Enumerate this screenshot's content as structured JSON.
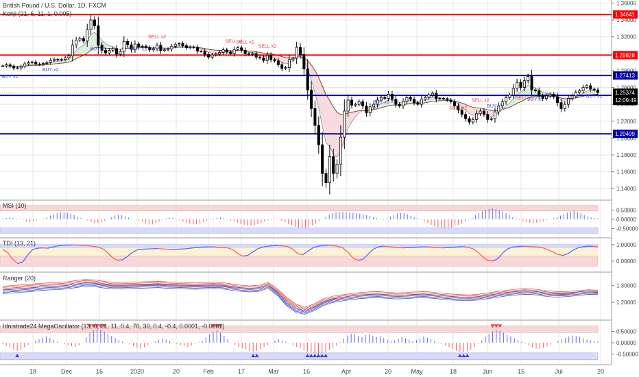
{
  "colors": {
    "up_candle": "#ffffff",
    "down_candle": "#000000",
    "red_level": "#ff0000",
    "blue_level": "#0000aa",
    "pane_border": "#999999",
    "grid": "#e6e6e6",
    "osc_red_band": "#f8d7d7",
    "osc_blue_band": "#d7dbf8",
    "kx_red": "#ff5a5a",
    "kx_blue": "#5a64ff",
    "kx_green": "#32a04a",
    "ranger_red": "#e0554a",
    "ranger_blue": "#3f57c8",
    "current_price_box": "#000000"
  },
  "chart_data": [
    {
      "type": "candlestick",
      "title": "British Pound / U.S. Dollar, 1D, FXCM",
      "indicator_label": "Konji (21, 6, 11, 1, 0.005)",
      "x_tick_labels": [
        "18",
        "Dec",
        "16",
        "2020",
        "20",
        "Feb",
        "17",
        "Mar",
        "16",
        "Apr",
        "20",
        "May",
        "18",
        "Jun",
        "15",
        "Jul",
        "20"
      ],
      "y_tick_labels": [
        "1.36000",
        "1.34000",
        "1.32000",
        "1.30000",
        "1.28000",
        "1.26000",
        "1.24000",
        "1.22000",
        "1.20000",
        "1.18000",
        "1.16000",
        "1.14000"
      ],
      "ylim": [
        1.128,
        1.362
      ],
      "horizontal_levels": [
        {
          "value": 1.34641,
          "label": "1.34641",
          "color": "red"
        },
        {
          "value": 1.29828,
          "label": "1.29828",
          "color": "red"
        },
        {
          "value": 1.27413,
          "label": "1.27413",
          "color": "blue"
        },
        {
          "value": 1.25054,
          "label": "1.25054",
          "color": "blue"
        },
        {
          "value": 1.20499,
          "label": "1.20499",
          "color": "blue"
        }
      ],
      "current_price": "1.25374",
      "countdown": "12:09:49",
      "annotations": [
        {
          "text": "SELL x2",
          "idx": 42,
          "price": 1.318
        },
        {
          "text": "SELL x1",
          "idx": 63,
          "price": 1.313
        },
        {
          "text": "SELL x1",
          "idx": 66,
          "price": 1.312
        },
        {
          "text": "SELL x2",
          "idx": 72,
          "price": 1.307
        },
        {
          "text": "SELL x2",
          "idx": 124,
          "price": 1.234
        },
        {
          "text": "SELL x2",
          "idx": 130,
          "price": 1.243
        },
        {
          "text": "SELL x1",
          "idx": 142,
          "price": 1.246
        },
        {
          "text": "BUY x1",
          "idx": 2,
          "price": 1.271
        },
        {
          "text": "BUY x2",
          "idx": 13,
          "price": 1.279
        },
        {
          "text": "BUY x1",
          "idx": 26,
          "price": 1.304
        },
        {
          "text": "BUY x2",
          "idx": 37,
          "price": 1.304
        },
        {
          "text": "BUY x1",
          "idx": 103,
          "price": 1.241
        },
        {
          "text": "BUY x1",
          "idx": 134,
          "price": 1.236
        },
        {
          "text": "BUY x1",
          "idx": 145,
          "price": 1.244
        },
        {
          "text": "BUY x1",
          "idx": 161,
          "price": 1.248
        }
      ],
      "close": [
        1.2855,
        1.2868,
        1.285,
        1.283,
        1.2832,
        1.285,
        1.288,
        1.2895,
        1.29,
        1.2878,
        1.2872,
        1.2885,
        1.2895,
        1.292,
        1.2935,
        1.2925,
        1.2932,
        1.295,
        1.2975,
        1.3102,
        1.316,
        1.318,
        1.315,
        1.3285,
        1.34,
        1.333,
        1.31,
        1.304,
        1.301,
        1.304,
        1.306,
        1.2995,
        1.3025,
        1.3145,
        1.3105,
        1.305,
        1.3115,
        1.3085,
        1.309,
        1.3072,
        1.3045,
        1.306,
        1.31,
        1.3038,
        1.3045,
        1.3055,
        1.3088,
        1.311,
        1.312,
        1.3095,
        1.307,
        1.308,
        1.3075,
        1.303,
        1.3028,
        1.299,
        1.296,
        1.2985,
        1.2995,
        1.3015,
        1.3045,
        1.302,
        1.3,
        1.305,
        1.307,
        1.304,
        1.3,
        1.299,
        1.3,
        1.296,
        1.295,
        1.292,
        1.298,
        1.293,
        1.2915,
        1.287,
        1.2825,
        1.2835,
        1.293,
        1.2945,
        1.3075,
        1.299,
        1.282,
        1.257,
        1.235,
        1.215,
        1.192,
        1.158,
        1.147,
        1.178,
        1.158,
        1.169,
        1.201,
        1.232,
        1.245,
        1.239,
        1.24,
        1.243,
        1.238,
        1.23,
        1.237,
        1.24,
        1.245,
        1.248,
        1.247,
        1.252,
        1.246,
        1.24,
        1.238,
        1.2435,
        1.248,
        1.246,
        1.242,
        1.24,
        1.246,
        1.248,
        1.251,
        1.253,
        1.2465,
        1.247,
        1.2465,
        1.245,
        1.243,
        1.238,
        1.233,
        1.228,
        1.223,
        1.219,
        1.222,
        1.229,
        1.232,
        1.228,
        1.222,
        1.223,
        1.231,
        1.238,
        1.243,
        1.248,
        1.251,
        1.259,
        1.266,
        1.26,
        1.268,
        1.273,
        1.257,
        1.256,
        1.25,
        1.247,
        1.25,
        1.252,
        1.249,
        1.242,
        1.235,
        1.24,
        1.247,
        1.25,
        1.254,
        1.256,
        1.26,
        1.262,
        1.258,
        1.257,
        1.2537
      ]
    },
    {
      "type": "bar",
      "title": "MSI (10)",
      "y_tick_labels": [
        "0.50000",
        "0.00000",
        "-0.50000"
      ],
      "ylim": [
        -0.85,
        0.85
      ],
      "values": [
        0.05,
        0.08,
        0.1,
        0.07,
        0.04,
        0.02,
        -0.03,
        -0.12,
        -0.16,
        -0.1,
        -0.05,
        0.02,
        0.04,
        0.12,
        0.2,
        0.28,
        0.34,
        0.39,
        0.4,
        0.36,
        0.31,
        0.23,
        0.15,
        0.07,
        0.0,
        -0.07,
        -0.14,
        -0.19,
        -0.2,
        -0.15,
        -0.08,
        0.02,
        0.11,
        0.2,
        0.25,
        0.22,
        0.16,
        0.09,
        0.03,
        0.0,
        -0.06,
        -0.14,
        -0.22,
        -0.28,
        -0.27,
        -0.2,
        -0.12,
        -0.04,
        0.05,
        0.1,
        0.07,
        0.01,
        -0.06,
        -0.13,
        -0.19,
        -0.24,
        -0.27,
        -0.26,
        -0.22,
        -0.16,
        -0.09,
        -0.03,
        0.03,
        0.08,
        0.1,
        0.06,
        0.01,
        -0.06,
        -0.12,
        -0.19,
        -0.25,
        -0.3,
        -0.33,
        -0.34,
        -0.32,
        -0.26,
        -0.19,
        -0.12,
        -0.06,
        -0.02,
        0.03,
        0.0,
        -0.08,
        -0.16,
        -0.25,
        -0.33,
        -0.4,
        -0.45,
        -0.48,
        -0.47,
        -0.42,
        -0.33,
        -0.22,
        -0.1,
        0.02,
        0.14,
        0.25,
        0.33,
        0.39,
        0.41,
        0.4,
        0.38,
        0.36,
        0.35,
        0.33,
        0.32,
        0.28,
        0.23,
        0.18,
        0.12,
        0.06,
        0.02,
        -0.02,
        0.05,
        0.14,
        0.24,
        0.32,
        0.35,
        0.33,
        0.27,
        0.2,
        0.12,
        0.05,
        -0.02,
        -0.1,
        -0.2,
        -0.3,
        -0.38,
        -0.44,
        -0.48,
        -0.5,
        -0.48,
        -0.44,
        -0.38,
        -0.3,
        -0.21,
        -0.11,
        -0.01,
        0.1,
        0.22,
        0.33,
        0.43,
        0.51,
        0.56,
        0.58,
        0.55,
        0.49,
        0.42,
        0.33,
        0.24,
        0.14,
        0.05,
        -0.04,
        -0.11,
        -0.16,
        -0.19,
        -0.2,
        -0.18,
        -0.14,
        -0.09,
        -0.04,
        0.01,
        0.06,
        0.12,
        0.2,
        0.28,
        0.36,
        0.42,
        0.45,
        0.41,
        0.33,
        0.24,
        0.16,
        0.1,
        0.07,
        0.05
      ]
    },
    {
      "type": "line",
      "title": "TDI (13, 21)",
      "y_tick_labels": [
        "1.00000",
        "0.00000"
      ],
      "ylim": [
        -0.5,
        1.2
      ],
      "series": [
        {
          "values": [
            0.7,
            0.52,
            0.1,
            -0.15,
            -0.05,
            0.38,
            0.7,
            0.78,
            0.8,
            0.78,
            0.85,
            0.92,
            0.95,
            0.97,
            0.98,
            0.97,
            0.95,
            0.94,
            0.9,
            0.85,
            0.75,
            0.5,
            0.2,
            0.05,
            0.08,
            0.3,
            0.55,
            0.7,
            0.72,
            0.74,
            0.75,
            0.76,
            0.74,
            0.72,
            0.7,
            0.72,
            0.74,
            0.76,
            0.8,
            0.83,
            0.85,
            0.86,
            0.86,
            0.84,
            0.82,
            0.8,
            0.7,
            0.45,
            0.3,
            0.35,
            0.55,
            0.75,
            0.85,
            0.9,
            0.93,
            0.94,
            0.92,
            0.88,
            0.72,
            0.45,
            0.38,
            0.6,
            0.8,
            0.9,
            0.94,
            0.95,
            0.94,
            0.9,
            0.8,
            0.55,
            0.2,
            0.05,
            0.1,
            0.4,
            0.7,
            0.85,
            0.9,
            0.88,
            0.85,
            0.82,
            0.8,
            0.82,
            0.84,
            0.85,
            0.86,
            0.86,
            0.84,
            0.82,
            0.8,
            0.82,
            0.84,
            0.86,
            0.88,
            0.84,
            0.75,
            0.55,
            0.25,
            0.05,
            0.0,
            0.15,
            0.5,
            0.75,
            0.85,
            0.88,
            0.9,
            0.89,
            0.87,
            0.85,
            0.8,
            0.7,
            0.55,
            0.4,
            0.35,
            0.45,
            0.65,
            0.8,
            0.87,
            0.9,
            0.9,
            0.88
          ]
        }
      ]
    },
    {
      "type": "line",
      "title": "Ranger (20)",
      "y_tick_labels": [
        "1.30000",
        "1.20000"
      ],
      "ylim": [
        1.11,
        1.36
      ],
      "series": [
        {
          "values": [
            1.296,
            1.3,
            1.304,
            1.308,
            1.313,
            1.316,
            1.318,
            1.322,
            1.33,
            1.337,
            1.334,
            1.326,
            1.318,
            1.318,
            1.32,
            1.322,
            1.324,
            1.326,
            1.322,
            1.32,
            1.318,
            1.316,
            1.318,
            1.32,
            1.318,
            1.31,
            1.302,
            1.298,
            1.302,
            1.32,
            1.28,
            1.23,
            1.19,
            1.17,
            1.19,
            1.22,
            1.236,
            1.244,
            1.252,
            1.258,
            1.262,
            1.264,
            1.26,
            1.256,
            1.258,
            1.262,
            1.264,
            1.26,
            1.254,
            1.25,
            1.246,
            1.244,
            1.248,
            1.256,
            1.264,
            1.272,
            1.278,
            1.282,
            1.28,
            1.272,
            1.266,
            1.264,
            1.266,
            1.27,
            1.275,
            1.272
          ]
        },
        {
          "values": [
            1.252,
            1.256,
            1.26,
            1.264,
            1.27,
            1.274,
            1.276,
            1.28,
            1.288,
            1.296,
            1.294,
            1.286,
            1.28,
            1.28,
            1.282,
            1.284,
            1.286,
            1.288,
            1.284,
            1.282,
            1.28,
            1.278,
            1.28,
            1.282,
            1.28,
            1.272,
            1.266,
            1.262,
            1.266,
            1.284,
            1.24,
            1.18,
            1.14,
            1.128,
            1.15,
            1.18,
            1.198,
            1.208,
            1.216,
            1.222,
            1.226,
            1.228,
            1.224,
            1.22,
            1.222,
            1.226,
            1.228,
            1.224,
            1.218,
            1.214,
            1.21,
            1.21,
            1.214,
            1.222,
            1.23,
            1.238,
            1.244,
            1.248,
            1.246,
            1.238,
            1.232,
            1.232,
            1.236,
            1.242,
            1.248,
            1.246
          ]
        }
      ]
    },
    {
      "type": "bar",
      "title": "Idnistrade24 MegaOscillator (13, 6, 21, 11, 0.4, 70, 30, 0.4, -0.4, 0.0001, -0.0001)",
      "y_tick_labels": [
        "0.50000",
        "0.00000",
        "-0.50000"
      ],
      "ylim": [
        -0.85,
        0.85
      ],
      "values": [
        -0.05,
        -0.12,
        -0.22,
        -0.3,
        -0.36,
        -0.3,
        -0.2,
        -0.1,
        0.0,
        0.08,
        0.15,
        0.22,
        0.28,
        0.2,
        0.12,
        0.05,
        0.0,
        -0.05,
        -0.1,
        -0.15,
        -0.18,
        -0.12,
        0.0,
        0.25,
        0.45,
        0.55,
        0.62,
        0.58,
        0.5,
        0.4,
        0.3,
        0.2,
        0.12,
        0.05,
        -0.02,
        -0.08,
        -0.15,
        -0.22,
        -0.28,
        -0.2,
        -0.1,
        -0.02,
        0.05,
        0.12,
        0.18,
        0.14,
        0.08,
        0.02,
        -0.05,
        -0.1,
        -0.14,
        -0.18,
        -0.12,
        -0.05,
        0.02,
        0.08,
        0.25,
        0.38,
        0.48,
        0.55,
        0.45,
        0.3,
        0.15,
        0.0,
        -0.1,
        -0.18,
        -0.25,
        -0.3,
        -0.35,
        -0.4,
        -0.36,
        -0.28,
        -0.18,
        -0.1,
        0.0,
        0.08,
        0.15,
        0.1,
        0.05,
        -0.02,
        -0.1,
        -0.18,
        -0.25,
        -0.32,
        -0.38,
        -0.42,
        -0.45,
        -0.48,
        -0.45,
        -0.4,
        -0.32,
        -0.22,
        -0.12,
        0.02,
        0.18,
        0.32,
        0.4,
        0.38,
        0.3,
        0.25,
        0.34,
        0.36,
        0.3,
        0.25,
        0.28,
        0.2,
        0.12,
        0.06,
        0.1,
        0.18,
        0.25,
        0.2,
        0.14,
        0.08,
        0.12,
        0.2,
        0.28,
        0.22,
        0.15,
        0.08,
        0.02,
        -0.05,
        -0.12,
        -0.2,
        -0.28,
        -0.35,
        -0.4,
        -0.42,
        -0.38,
        -0.3,
        -0.18,
        -0.05,
        0.1,
        0.25,
        0.4,
        0.5,
        0.58,
        0.52,
        0.44,
        0.35,
        0.28,
        0.2,
        0.12,
        0.04,
        -0.04,
        -0.12,
        -0.2,
        -0.26,
        -0.28,
        -0.22,
        -0.15,
        -0.08,
        0.0,
        0.08,
        0.15,
        0.22,
        0.28,
        0.32,
        0.3,
        0.26,
        0.2,
        0.14,
        0.1,
        0.08,
        0.06
      ]
    }
  ]
}
